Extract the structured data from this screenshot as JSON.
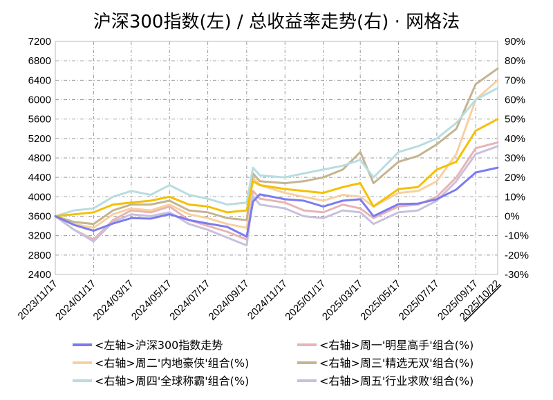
{
  "chart_data": {
    "type": "line",
    "title": "沪深300指数(左)  /  总收益率走势(右) · 网格法",
    "x_tick_labels": [
      "2023/11/17",
      "2024/01/17",
      "2024/03/17",
      "2024/05/17",
      "2024/07/17",
      "2024/09/17",
      "2024/11/17",
      "2025/01/17",
      "2025/03/17",
      "2025/05/17",
      "2025/07/17",
      "2025/09/17",
      "2025/10/22"
    ],
    "x_last_label_color": "#ff0000",
    "y_left": {
      "range": [
        2400,
        7200
      ],
      "ticks": [
        2400,
        2800,
        3200,
        3600,
        4000,
        4400,
        4800,
        5200,
        5600,
        6000,
        6400,
        6800,
        7200
      ]
    },
    "y_right": {
      "range": [
        -30,
        90
      ],
      "ticks": [
        -30,
        -20,
        -10,
        0,
        10,
        20,
        30,
        40,
        50,
        60,
        70,
        80,
        90
      ],
      "tick_labels": [
        "-30%",
        "-20%",
        "-10%",
        "0%",
        "10%",
        "20%",
        "30%",
        "40%",
        "50%",
        "60%",
        "70%",
        "80%",
        "90%"
      ],
      "negative_color": "#00cc00"
    },
    "grid": true,
    "legend_position": "bottom",
    "x": [
      "2023/11/17",
      "2023/12/17",
      "2024/01/17",
      "2024/02/17",
      "2024/03/17",
      "2024/04/17",
      "2024/05/17",
      "2024/06/17",
      "2024/07/17",
      "2024/08/17",
      "2024/09/17",
      "2024/09/27",
      "2024/10/08",
      "2024/11/17",
      "2024/12/17",
      "2025/01/17",
      "2025/02/17",
      "2025/03/17",
      "2025/04/07",
      "2025/05/17",
      "2025/06/17",
      "2025/07/17",
      "2025/08/17",
      "2025/09/17",
      "2025/10/22"
    ],
    "series": [
      {
        "name": "<左轴>沪深300指数走势",
        "axis": "left",
        "color": "#7b7bf0",
        "values": [
          3600,
          3420,
          3300,
          3450,
          3560,
          3550,
          3640,
          3520,
          3450,
          3380,
          3180,
          3900,
          4050,
          3950,
          3920,
          3800,
          3920,
          3950,
          3600,
          3850,
          3860,
          3950,
          4150,
          4500,
          4600
        ]
      },
      {
        "name": "<右轴>周一'明星高手'组合(%)",
        "axis": "right",
        "color": "#e8b4b4",
        "values": [
          0,
          -7,
          -12,
          -2,
          3,
          2,
          5,
          -2,
          -5,
          -8,
          -12,
          13,
          9,
          7,
          3,
          2,
          6,
          4,
          -1,
          5,
          6,
          10,
          20,
          35,
          38
        ]
      },
      {
        "name": "<右轴>周二'内地豪侠'组合(%)",
        "axis": "right",
        "color": "#f8d0a0",
        "values": [
          0,
          -4,
          -6,
          1,
          4,
          3,
          6,
          1,
          -1,
          -4,
          -6,
          20,
          16,
          12,
          10,
          8,
          11,
          10,
          5,
          12,
          13,
          18,
          32,
          60,
          70
        ]
      },
      {
        "name": "<右轴>周三'精选无双'组合(%)",
        "axis": "right",
        "color": "#c4b490",
        "values": [
          0,
          -3,
          -4,
          3,
          6,
          6,
          8,
          3,
          2,
          -1,
          -2,
          22,
          18,
          17,
          18,
          20,
          24,
          33,
          17,
          28,
          31,
          37,
          45,
          68,
          76
        ]
      },
      {
        "name": "<右轴>周四'全球称霸'组合(%)",
        "axis": "right",
        "color": "#b8dde0",
        "values": [
          0,
          3,
          4,
          10,
          13,
          11,
          16,
          11,
          9,
          6,
          7,
          25,
          21,
          20,
          22,
          24,
          26,
          29,
          20,
          33,
          36,
          40,
          48,
          60,
          66
        ]
      },
      {
        "name": "<右轴>周五'行业求败'组合(%)",
        "axis": "right",
        "color": "#c8c0dc",
        "values": [
          0,
          -7,
          -13,
          -3,
          1,
          0,
          2,
          -4,
          -7,
          -11,
          -15,
          10,
          6,
          4,
          0,
          -1,
          3,
          2,
          -4,
          2,
          3,
          8,
          18,
          32,
          36
        ]
      },
      {
        "name": "",
        "axis": "right",
        "color": "#f5c000",
        "legend": false,
        "values": [
          0,
          1,
          2,
          6,
          7,
          8,
          10,
          6,
          5,
          2,
          3,
          18,
          16,
          14,
          13,
          12,
          15,
          17,
          5,
          14,
          15,
          24,
          28,
          44,
          50
        ]
      }
    ]
  }
}
